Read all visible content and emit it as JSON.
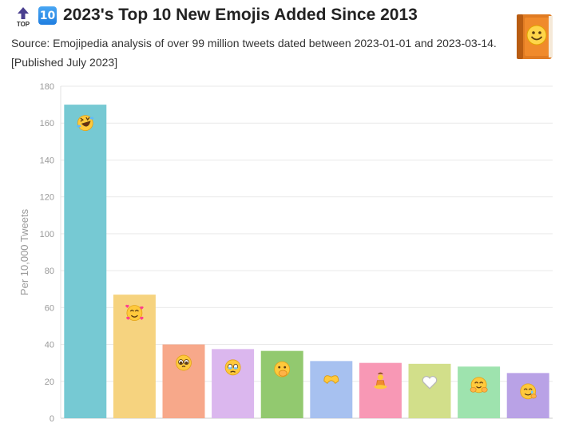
{
  "header": {
    "top_icon": "top-arrow-icon",
    "top_text": "TOP",
    "badge_text": "10",
    "title": "2023's Top 10 New Emojis Added Since 2013",
    "subtitle": "Source: Emojipedia analysis of over 99 million tweets dated between 2023-01-01 and 2023-03-14. [Published July 2023]",
    "logo_icon": "emojipedia-book-icon"
  },
  "chart_data": {
    "type": "bar",
    "title": "2023's Top 10 New Emojis Added Since 2013",
    "xlabel": "",
    "ylabel": "Per 10,000 Tweets",
    "ylim": [
      0,
      180
    ],
    "yticks": [
      0,
      20,
      40,
      60,
      80,
      100,
      120,
      140,
      160,
      180
    ],
    "grid": true,
    "categories": [
      "rolling-on-the-floor-laughing",
      "smiling-face-with-hearts",
      "pleading-face",
      "face-holding-back-tears",
      "face-with-hand-over-mouth",
      "heart-hands",
      "person-in-lotus-position",
      "white-heart",
      "smiling-face-with-open-hands",
      "smiling-face-with-tear"
    ],
    "values": [
      170,
      67,
      40,
      37.5,
      36.5,
      31,
      30,
      29.5,
      28,
      24.5
    ],
    "colors": [
      "#76c9d3",
      "#f6d37f",
      "#f7a88a",
      "#dbb7ee",
      "#92c96f",
      "#a7c1f0",
      "#f898b5",
      "#d2df8a",
      "#9ee3ae",
      "#b9a2e6"
    ],
    "icons": [
      "rofl-emoji",
      "smiling-hearts-emoji",
      "pleading-emoji",
      "holding-tears-emoji",
      "hand-over-mouth-emoji",
      "heart-hands-emoji",
      "lotus-person-emoji",
      "white-heart-emoji",
      "open-hands-emoji",
      "tear-smile-emoji"
    ]
  }
}
